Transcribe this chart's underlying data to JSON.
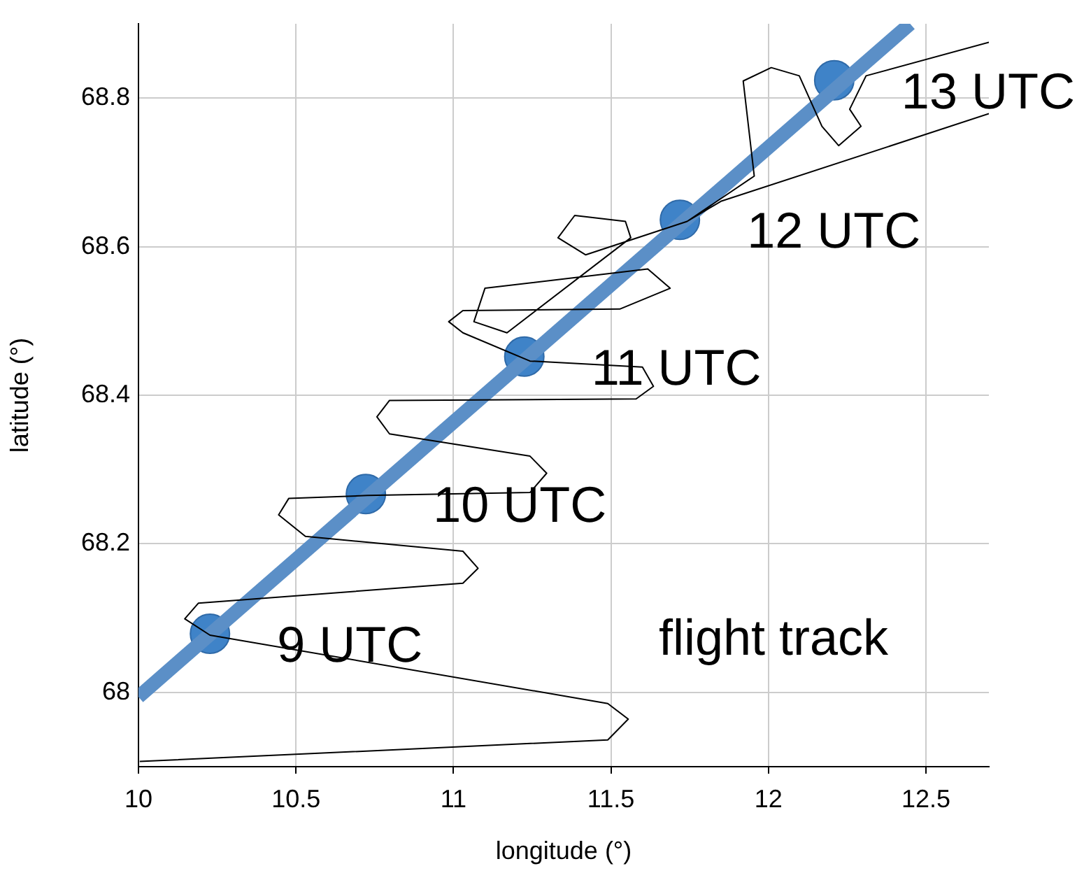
{
  "chart_data": {
    "type": "line",
    "xlabel": "longitude (°)",
    "ylabel": "latitude (°)",
    "xlim": [
      10,
      12.7
    ],
    "ylim": [
      67.9,
      68.9
    ],
    "xticks": [
      10,
      10.5,
      11,
      11.5,
      12,
      12.5
    ],
    "yticks": [
      {
        "value": 68,
        "label": "68"
      },
      68.2,
      68.4,
      68.6,
      68.8
    ],
    "grid": true,
    "legend": false,
    "series": [
      {
        "color": "#000000",
        "marker": "none",
        "x": [
          10.004,
          11.49,
          11.555,
          11.49,
          10.227,
          10.147,
          10.19,
          11.03,
          11.078,
          11.03,
          10.53,
          10.445,
          10.477,
          10.726,
          11.243,
          11.296,
          11.243,
          10.797,
          10.757,
          10.797,
          11.58,
          11.635,
          11.6,
          11.243,
          11.03,
          10.985,
          11.03,
          11.528,
          11.688,
          11.617,
          11.1,
          11.065,
          11.17,
          11.563,
          11.546,
          11.385,
          11.332,
          11.42,
          11.742,
          11.849,
          12.7,
          null,
          12.7,
          12.31,
          12.258,
          12.294,
          12.223,
          12.17,
          12.098,
          12.009,
          11.92,
          11.955,
          11.742
        ],
        "values": [
          67.907,
          67.936,
          67.964,
          67.985,
          68.077,
          68.099,
          68.12,
          68.147,
          68.167,
          68.19,
          68.21,
          68.239,
          68.261,
          68.265,
          68.269,
          68.295,
          68.318,
          68.348,
          68.371,
          68.393,
          68.395,
          68.412,
          68.438,
          68.446,
          68.484,
          68.499,
          68.514,
          68.516,
          68.544,
          68.57,
          68.544,
          68.499,
          68.484,
          68.612,
          68.634,
          68.642,
          68.612,
          68.589,
          68.634,
          68.661,
          68.779,
          null,
          68.875,
          68.83,
          68.785,
          68.762,
          68.736,
          68.762,
          68.83,
          68.841,
          68.823,
          68.695,
          68.634
        ]
      },
      {
        "color": "#5b8fc7",
        "marker": "none",
        "x": [
          10,
          12.45
        ],
        "values": [
          67.994,
          68.9
        ]
      },
      {
        "type": "scatter",
        "color": "#3f83c8",
        "marker": "circle",
        "x": [
          10.227,
          10.722,
          11.225,
          11.719,
          12.209
        ],
        "values": [
          68.079,
          68.267,
          68.452,
          68.636,
          68.824
        ]
      }
    ],
    "annotations": [
      {
        "text": "9 UTC",
        "x": 10.227,
        "y": 68.079
      },
      {
        "text": "10 UTC",
        "x": 10.722,
        "y": 68.267
      },
      {
        "text": "11 UTC",
        "x": 11.225,
        "y": 68.452
      },
      {
        "text": "12 UTC",
        "x": 11.719,
        "y": 68.636
      },
      {
        "text": "13 UTC",
        "x": 12.209,
        "y": 68.824
      },
      "flight track"
    ]
  }
}
